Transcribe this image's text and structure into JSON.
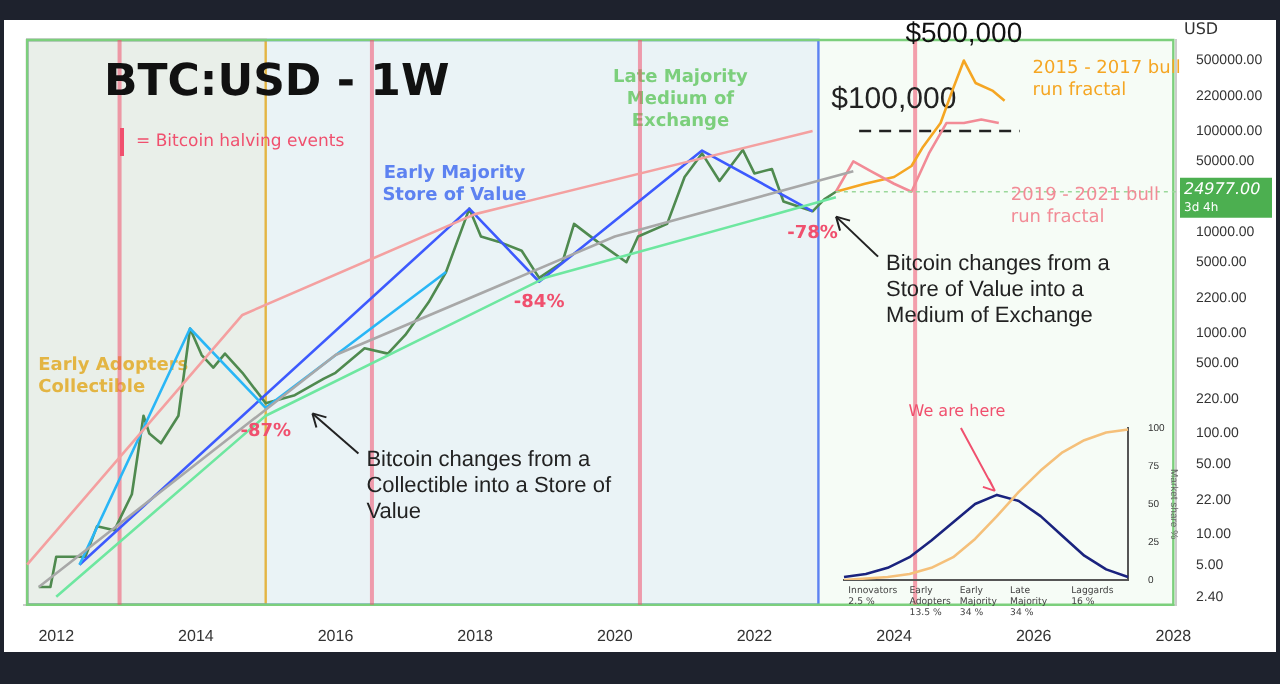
{
  "chart_data": [
    {
      "type": "line",
      "title": "BTC:USD - 1W",
      "ylabel": "USD",
      "log": "y",
      "grid": false,
      "legend": false,
      "marker": "none",
      "xlim": [
        "2011-07-15",
        "2028-01-15"
      ],
      "xticks": [
        "2012",
        "2014",
        "2016",
        "2018",
        "2020",
        "2022",
        "2024",
        "2026",
        "2028"
      ],
      "ylim": [
        2,
        800000
      ],
      "yticks": [
        {
          "value": 2.4,
          "label": "2.40"
        },
        {
          "value": 5,
          "label": "5.00"
        },
        {
          "value": 10,
          "label": "10.00"
        },
        {
          "value": 22,
          "label": "22.00"
        },
        {
          "value": 50,
          "label": "50.00"
        },
        {
          "value": 100,
          "label": "100.00"
        },
        {
          "value": 220,
          "label": "220.00"
        },
        {
          "value": 500,
          "label": "500.00"
        },
        {
          "value": 1000,
          "label": "1000.00"
        },
        {
          "value": 2200,
          "label": "2200.00"
        },
        {
          "value": 5000,
          "label": "5000.00"
        },
        {
          "value": 10000,
          "label": "10000.00"
        },
        {
          "value": 50000,
          "label": "50000.00"
        },
        {
          "value": 100000,
          "label": "100000.00"
        },
        {
          "value": 220000,
          "label": "220000.00"
        },
        {
          "value": 500000,
          "label": "500000.00"
        }
      ],
      "series": [
        {
          "color": "#f4a0a0",
          "x": [
            "2011-08",
            "2014-09",
            "2018-01",
            "2022-11"
          ],
          "values": [
            5,
            1500,
            15000,
            100000
          ]
        },
        {
          "color": "#a8a8a8",
          "x": [
            "2011-10",
            "2016-01",
            "2020-01",
            "2023-06"
          ],
          "values": [
            3,
            600,
            9000,
            40000
          ]
        },
        {
          "color": "#6ee7a0",
          "x": [
            "2012-01",
            "2015-01",
            "2019-01",
            "2023-03"
          ],
          "values": [
            2.4,
            150,
            3500,
            22000
          ]
        },
        {
          "color": "#29b6f6",
          "x": [
            "2012-05",
            "2013-12",
            "2015-01",
            "2017-08"
          ],
          "values": [
            5,
            1100,
            180,
            4000
          ]
        },
        {
          "color": "#3d5afe",
          "x": [
            "2012-05",
            "2017-12",
            "2018-12",
            "2021-04",
            "2022-11"
          ],
          "values": [
            5,
            17000,
            3200,
            64000,
            16000
          ]
        },
        {
          "color": "#4f8a4f",
          "x": [
            "2011-10",
            "2011-12",
            "2012-01",
            "2012-06",
            "2012-08",
            "2012-11",
            "2013-02",
            "2013-04",
            "2013-05",
            "2013-07",
            "2013-10",
            "2013-12",
            "2014-02",
            "2014-04",
            "2014-06",
            "2014-09",
            "2015-01",
            "2015-06",
            "2015-11",
            "2016-01",
            "2016-06",
            "2016-10",
            "2017-01",
            "2017-05",
            "2017-08",
            "2017-12",
            "2018-02",
            "2018-05",
            "2018-09",
            "2018-12",
            "2019-04",
            "2019-06",
            "2019-10",
            "2020-03",
            "2020-05",
            "2020-10",
            "2021-01",
            "2021-04",
            "2021-07",
            "2021-11",
            "2022-01",
            "2022-04",
            "2022-06",
            "2022-11",
            "2023-01",
            "2023-03"
          ],
          "values": [
            3,
            3,
            6,
            6,
            12,
            11,
            25,
            150,
            100,
            80,
            150,
            1100,
            600,
            450,
            620,
            400,
            200,
            240,
            350,
            400,
            700,
            620,
            950,
            2000,
            4000,
            17000,
            9000,
            8000,
            6500,
            3500,
            5000,
            12000,
            8000,
            5000,
            9000,
            12000,
            35000,
            60000,
            32000,
            65000,
            38000,
            42000,
            20000,
            16000,
            21000,
            25000
          ]
        },
        {
          "name": "2019 - 2021 bull run fractal",
          "color": "#f28b96",
          "x": [
            "2023-03",
            "2023-06",
            "2023-09",
            "2024-01",
            "2024-04",
            "2024-07",
            "2024-10",
            "2025-01",
            "2025-04",
            "2025-07"
          ],
          "values": [
            25000,
            50000,
            40000,
            30000,
            25000,
            60000,
            120000,
            120000,
            130000,
            120000
          ]
        },
        {
          "name": "2015 - 2017 bull run fractal",
          "color": "#f5a623",
          "x": [
            "2023-03",
            "2023-08",
            "2024-01",
            "2024-04",
            "2024-06",
            "2024-09",
            "2024-11",
            "2025-01",
            "2025-03",
            "2025-06",
            "2025-08"
          ],
          "values": [
            25000,
            30000,
            35000,
            45000,
            70000,
            120000,
            250000,
            500000,
            300000,
            250000,
            200000
          ]
        }
      ],
      "ref_lines": [
        {
          "axis": "x",
          "value": "2012-11-28",
          "label": null,
          "color": "#f0506e"
        },
        {
          "axis": "x",
          "value": "2016-07-09",
          "label": null,
          "color": "#f0506e"
        },
        {
          "axis": "x",
          "value": "2020-05-11",
          "label": null,
          "color": "#f0506e"
        },
        {
          "axis": "x",
          "value": "2024-04-20",
          "label": null,
          "color": "#f0506e"
        },
        {
          "axis": "y",
          "value": 100000,
          "label": "$100,000",
          "color": "#222222",
          "line_style": "dashed"
        }
      ],
      "bands": [
        {
          "axis": "x",
          "from": "2011-08",
          "to": "2015-01",
          "label": "Early Adopters Collectible",
          "color": "#f7b731"
        },
        {
          "axis": "x",
          "from": "2011-08",
          "to": "2022-12",
          "label": "Early Majority Store of Value",
          "color": "#5b7cfa"
        },
        {
          "axis": "x",
          "from": "2011-08",
          "to": "2028-01",
          "label": "Late Majority Medium of Exchange",
          "color": "#7ccf7c"
        }
      ],
      "annotations": [
        "= Bitcoin halving events",
        "3d 4h",
        {
          "text": "Bitcoin changes from a Collectible into a Store of Value",
          "x": "2015-08",
          "y": 190
        },
        {
          "text": "Bitcoin changes from a Store of Value into a Medium of Exchange",
          "x": "2023-02",
          "y": 17000
        },
        {
          "text": "-87%",
          "x": "2015-01",
          "y": 170
        },
        {
          "text": "-84%",
          "x": "2018-12",
          "y": 3200
        },
        {
          "text": "-78%",
          "x": "2022-11",
          "y": 15500
        },
        {
          "text": "$500,000",
          "x": "2025-01",
          "y": 500000
        },
        {
          "text": "24977.00",
          "x": "2023-03",
          "y": 24977
        }
      ]
    },
    {
      "type": "line",
      "ylabel": "Market share %",
      "grid": false,
      "legend": false,
      "marker": "none",
      "tick_labels": "y",
      "categories": [
        null,
        null,
        null,
        null,
        null,
        null,
        null,
        null,
        null,
        null,
        null,
        null,
        null,
        null
      ],
      "ylim": [
        0,
        100
      ],
      "yticks": [
        0,
        25,
        50,
        75,
        100
      ],
      "series": [
        {
          "color": "#f5c07a",
          "values": [
            0,
            1,
            2,
            4,
            8,
            15,
            27,
            42,
            58,
            72,
            84,
            92,
            97,
            99
          ]
        },
        {
          "color": "#1a237e",
          "values": [
            2,
            4,
            8,
            15,
            26,
            38,
            50,
            56,
            52,
            42,
            29,
            16,
            7,
            2
          ]
        }
      ],
      "annotations": [
        "We are here",
        "Innovators 2.5 %",
        "Early Adopters 13.5 %",
        "Early Majority 34 %",
        "Late Majority 34 %",
        "Laggards 16 %"
      ]
    }
  ]
}
